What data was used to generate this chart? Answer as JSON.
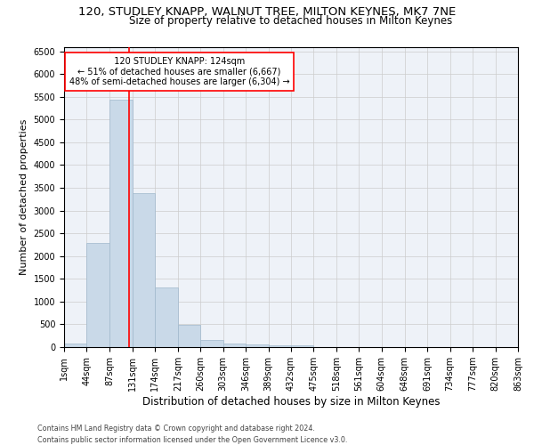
{
  "title1": "120, STUDLEY KNAPP, WALNUT TREE, MILTON KEYNES, MK7 7NE",
  "title2": "Size of property relative to detached houses in Milton Keynes",
  "xlabel": "Distribution of detached houses by size in Milton Keynes",
  "ylabel": "Number of detached properties",
  "footer1": "Contains HM Land Registry data © Crown copyright and database right 2024.",
  "footer2": "Contains public sector information licensed under the Open Government Licence v3.0.",
  "annotation_title": "120 STUDLEY KNAPP: 124sqm",
  "annotation_line1": "← 51% of detached houses are smaller (6,667)",
  "annotation_line2": "48% of semi-detached houses are larger (6,304) →",
  "bar_color": "#c9d9e8",
  "bar_edge_color": "#a0b8cc",
  "vline_x": 124,
  "vline_color": "red",
  "bin_edges": [
    1,
    44,
    87,
    131,
    174,
    217,
    260,
    303,
    346,
    389,
    432,
    475,
    518,
    561,
    604,
    648,
    691,
    734,
    777,
    820,
    863
  ],
  "bin_counts": [
    75,
    2280,
    5430,
    3390,
    1310,
    480,
    165,
    85,
    55,
    45,
    35,
    0,
    0,
    0,
    0,
    0,
    0,
    0,
    0,
    0
  ],
  "ylim": [
    0,
    6600
  ],
  "yticks": [
    0,
    500,
    1000,
    1500,
    2000,
    2500,
    3000,
    3500,
    4000,
    4500,
    5000,
    5500,
    6000,
    6500
  ],
  "title1_fontsize": 9.5,
  "title2_fontsize": 8.5,
  "xlabel_fontsize": 8.5,
  "ylabel_fontsize": 8,
  "annotation_fontsize": 7,
  "tick_fontsize": 7,
  "annotation_box_color": "white",
  "annotation_box_edge_color": "red",
  "grid_color": "#cccccc",
  "bg_color": "#eef2f8"
}
